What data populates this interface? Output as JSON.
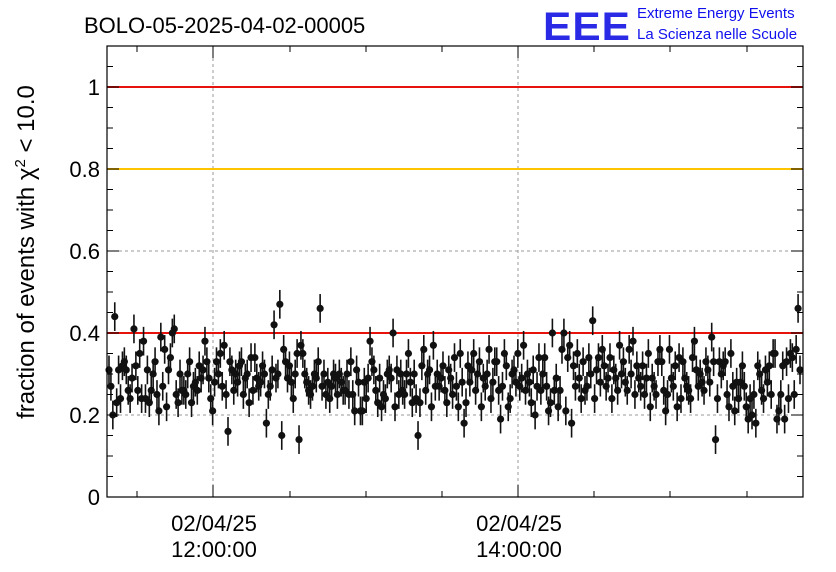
{
  "chart_data": {
    "type": "scatter",
    "title": "BOLO-05-2025-04-02-00005",
    "ylabel": "fraction of events with χ² < 10.0",
    "ylabel_parts": {
      "prefix": "fraction of events with ",
      "symbol": "χ",
      "sup": "2",
      "suffix": " < 10.0"
    },
    "ylim": [
      0,
      1.1
    ],
    "y_ticks": [
      "0",
      "0.2",
      "0.4",
      "0.6",
      "0.8",
      "1"
    ],
    "x_ticks": [
      {
        "date": "02/04/25",
        "time": "12:00:00"
      },
      {
        "date": "02/04/25",
        "time": "14:00:00"
      }
    ],
    "grid": true,
    "reference_lines": [
      {
        "value": 1.0,
        "color": "#e8120c"
      },
      {
        "value": 0.8,
        "color": "#ffc400"
      },
      {
        "value": 0.4,
        "color": "#e8120c"
      }
    ],
    "marker_color": "#111111",
    "errorbar": 0.035,
    "series": [
      {
        "values": [
          0.31,
          0.27,
          0.2,
          0.44,
          0.23,
          0.31,
          0.24,
          0.32,
          0.33,
          0.31,
          0.26,
          0.24,
          0.29,
          0.41,
          0.32,
          0.26,
          0.35,
          0.24,
          0.38,
          0.24,
          0.31,
          0.23,
          0.26,
          0.3,
          0.33,
          0.25,
          0.21,
          0.39,
          0.27,
          0.36,
          0.22,
          0.31,
          0.34,
          0.4,
          0.41,
          0.25,
          0.23,
          0.3,
          0.26,
          0.26,
          0.25,
          0.3,
          0.33,
          0.23,
          0.27,
          0.28,
          0.26,
          0.32,
          0.29,
          0.31,
          0.38,
          0.33,
          0.29,
          0.24,
          0.21,
          0.28,
          0.33,
          0.3,
          0.35,
          0.27,
          0.37,
          0.25,
          0.16,
          0.33,
          0.31,
          0.26,
          0.3,
          0.28,
          0.32,
          0.33,
          0.25,
          0.29,
          0.3,
          0.23,
          0.34,
          0.26,
          0.34,
          0.29,
          0.27,
          0.28,
          0.32,
          0.3,
          0.18,
          0.25,
          0.27,
          0.31,
          0.42,
          0.29,
          0.3,
          0.47,
          0.15,
          0.36,
          0.33,
          0.29,
          0.32,
          0.28,
          0.24,
          0.3,
          0.35,
          0.14,
          0.37,
          0.35,
          0.3,
          0.28,
          0.26,
          0.25,
          0.27,
          0.3,
          0.29,
          0.33,
          0.46,
          0.27,
          0.3,
          0.25,
          0.28,
          0.24,
          0.27,
          0.3,
          0.29,
          0.25,
          0.3,
          0.28,
          0.26,
          0.26,
          0.3,
          0.25,
          0.33,
          0.25,
          0.21,
          0.31,
          0.28,
          0.21,
          0.21,
          0.28,
          0.24,
          0.29,
          0.38,
          0.33,
          0.31,
          0.26,
          0.23,
          0.29,
          0.22,
          0.25,
          0.24,
          0.3,
          0.31,
          0.29,
          0.4,
          0.22,
          0.31,
          0.25,
          0.3,
          0.26,
          0.25,
          0.3,
          0.35,
          0.28,
          0.23,
          0.3,
          0.24,
          0.15,
          0.23,
          0.32,
          0.36,
          0.26,
          0.3,
          0.31,
          0.22,
          0.37,
          0.27,
          0.3,
          0.27,
          0.29,
          0.32,
          0.26,
          0.23,
          0.31,
          0.29,
          0.25,
          0.34,
          0.27,
          0.22,
          0.35,
          0.28,
          0.18,
          0.23,
          0.32,
          0.28,
          0.31,
          0.35,
          0.26,
          0.3,
          0.33,
          0.22,
          0.29,
          0.27,
          0.3,
          0.36,
          0.24,
          0.28,
          0.33,
          0.33,
          0.26,
          0.19,
          0.27,
          0.35,
          0.32,
          0.22,
          0.24,
          0.3,
          0.31,
          0.28,
          0.35,
          0.27,
          0.29,
          0.37,
          0.26,
          0.3,
          0.28,
          0.23,
          0.31,
          0.2,
          0.27,
          0.34,
          0.26,
          0.3,
          0.34,
          0.27,
          0.21,
          0.23,
          0.4,
          0.26,
          0.29,
          0.22,
          0.26,
          0.36,
          0.4,
          0.21,
          0.34,
          0.37,
          0.18,
          0.32,
          0.27,
          0.35,
          0.29,
          0.24,
          0.33,
          0.26,
          0.27,
          0.34,
          0.3,
          0.43,
          0.24,
          0.31,
          0.34,
          0.28,
          0.36,
          0.32,
          0.27,
          0.29,
          0.34,
          0.24,
          0.31,
          0.29,
          0.26,
          0.37,
          0.3,
          0.33,
          0.28,
          0.26,
          0.36,
          0.3,
          0.38,
          0.25,
          0.32,
          0.29,
          0.27,
          0.32,
          0.25,
          0.29,
          0.35,
          0.22,
          0.29,
          0.27,
          0.25,
          0.33,
          0.36,
          0.33,
          0.26,
          0.21,
          0.25,
          0.36,
          0.29,
          0.27,
          0.32,
          0.22,
          0.34,
          0.24,
          0.33,
          0.29,
          0.27,
          0.26,
          0.24,
          0.34,
          0.38,
          0.31,
          0.27,
          0.3,
          0.28,
          0.26,
          0.33,
          0.31,
          0.28,
          0.39,
          0.33,
          0.14,
          0.24,
          0.33,
          0.3,
          0.32,
          0.33,
          0.25,
          0.22,
          0.35,
          0.27,
          0.21,
          0.28,
          0.24,
          0.28,
          0.32,
          0.27,
          0.22,
          0.19,
          0.24,
          0.2,
          0.25,
          0.18,
          0.32,
          0.3,
          0.26,
          0.24,
          0.31,
          0.28,
          0.32,
          0.25,
          0.35,
          0.35,
          0.19,
          0.21,
          0.25,
          0.32,
          0.19,
          0.33,
          0.24,
          0.35,
          0.34,
          0.25,
          0.36,
          0.46,
          0.31
        ]
      }
    ]
  },
  "logo": {
    "mark": "EEE",
    "line1": "Extreme Energy Events",
    "line2": "La Scienza nelle Scuole"
  },
  "colors": {
    "grid": "#9a9a9a",
    "axis": "#000000",
    "logo_blue": "#1010ee"
  }
}
